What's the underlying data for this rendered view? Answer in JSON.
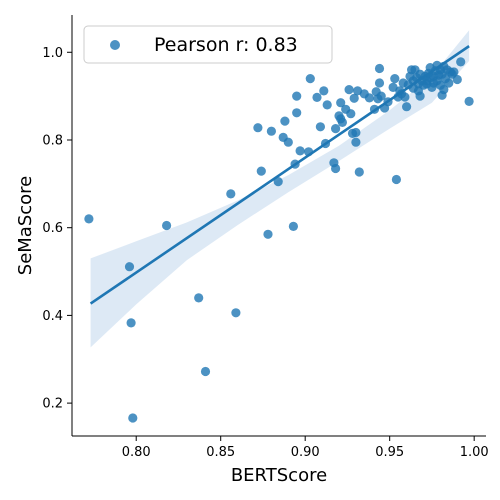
{
  "chart_data": {
    "type": "scatter",
    "xlabel": "BERTScore",
    "ylabel": "SeMaScore",
    "xlim": [
      0.762,
      1.007
    ],
    "ylim": [
      0.125,
      1.085
    ],
    "x_ticks": [
      {
        "value": 0.8,
        "label": "0.80"
      },
      {
        "value": 0.85,
        "label": "0.85"
      },
      {
        "value": 0.9,
        "label": "0.90"
      },
      {
        "value": 0.95,
        "label": "0.95"
      },
      {
        "value": 1.0,
        "label": "1.00"
      }
    ],
    "y_ticks": [
      {
        "value": 0.2,
        "label": "0.2"
      },
      {
        "value": 0.4,
        "label": "0.4"
      },
      {
        "value": 0.6,
        "label": "0.6"
      },
      {
        "value": 0.8,
        "label": "0.8"
      },
      {
        "value": 1.0,
        "label": "1.0"
      }
    ],
    "grid": false,
    "legend": {
      "position": "top-left",
      "label": "Pearson r: 0.83"
    },
    "colors": {
      "points": "#1f77b4",
      "line": "#1f77b4",
      "band": "#c6dbef"
    },
    "regression": {
      "x": [
        0.773,
        0.997
      ],
      "y": [
        0.427,
        1.014
      ]
    },
    "band_upper": [
      [
        0.773,
        0.53
      ],
      [
        0.8,
        0.569
      ],
      [
        0.83,
        0.612
      ],
      [
        0.86,
        0.662
      ],
      [
        0.89,
        0.72
      ],
      [
        0.92,
        0.787
      ],
      [
        0.95,
        0.868
      ],
      [
        0.975,
        0.946
      ],
      [
        0.997,
        1.05
      ]
    ],
    "band_lower": [
      [
        0.773,
        0.327
      ],
      [
        0.8,
        0.425
      ],
      [
        0.83,
        0.526
      ],
      [
        0.86,
        0.606
      ],
      [
        0.89,
        0.681
      ],
      [
        0.92,
        0.752
      ],
      [
        0.95,
        0.826
      ],
      [
        0.975,
        0.885
      ],
      [
        0.997,
        0.98
      ]
    ],
    "points": [
      [
        0.772,
        0.62
      ],
      [
        0.796,
        0.511
      ],
      [
        0.797,
        0.383
      ],
      [
        0.798,
        0.166
      ],
      [
        0.818,
        0.605
      ],
      [
        0.837,
        0.44
      ],
      [
        0.841,
        0.272
      ],
      [
        0.856,
        0.677
      ],
      [
        0.859,
        0.406
      ],
      [
        0.872,
        0.828
      ],
      [
        0.874,
        0.729
      ],
      [
        0.878,
        0.585
      ],
      [
        0.88,
        0.82
      ],
      [
        0.884,
        0.705
      ],
      [
        0.887,
        0.806
      ],
      [
        0.888,
        0.843
      ],
      [
        0.89,
        0.795
      ],
      [
        0.893,
        0.603
      ],
      [
        0.894,
        0.745
      ],
      [
        0.895,
        0.862
      ],
      [
        0.895,
        0.9
      ],
      [
        0.897,
        0.775
      ],
      [
        0.902,
        0.773
      ],
      [
        0.903,
        0.94
      ],
      [
        0.907,
        0.897
      ],
      [
        0.909,
        0.83
      ],
      [
        0.911,
        0.912
      ],
      [
        0.912,
        0.792
      ],
      [
        0.913,
        0.88
      ],
      [
        0.917,
        0.748
      ],
      [
        0.918,
        0.826
      ],
      [
        0.918,
        0.735
      ],
      [
        0.92,
        0.855
      ],
      [
        0.921,
        0.885
      ],
      [
        0.921,
        0.848
      ],
      [
        0.922,
        0.84
      ],
      [
        0.924,
        0.87
      ],
      [
        0.926,
        0.915
      ],
      [
        0.927,
        0.86
      ],
      [
        0.928,
        0.815
      ],
      [
        0.929,
        0.895
      ],
      [
        0.93,
        0.795
      ],
      [
        0.93,
        0.817
      ],
      [
        0.931,
        0.912
      ],
      [
        0.932,
        0.727
      ],
      [
        0.935,
        0.905
      ],
      [
        0.938,
        0.896
      ],
      [
        0.941,
        0.87
      ],
      [
        0.942,
        0.91
      ],
      [
        0.943,
        0.894
      ],
      [
        0.944,
        0.963
      ],
      [
        0.944,
        0.93
      ],
      [
        0.945,
        0.9
      ],
      [
        0.947,
        0.873
      ],
      [
        0.949,
        0.887
      ],
      [
        0.952,
        0.92
      ],
      [
        0.953,
        0.94
      ],
      [
        0.954,
        0.71
      ],
      [
        0.955,
        0.898
      ],
      [
        0.956,
        0.912
      ],
      [
        0.957,
        0.905
      ],
      [
        0.958,
        0.93
      ],
      [
        0.959,
        0.898
      ],
      [
        0.96,
        0.876
      ],
      [
        0.961,
        0.926
      ],
      [
        0.962,
        0.945
      ],
      [
        0.963,
        0.96
      ],
      [
        0.964,
        0.918
      ],
      [
        0.964,
        0.935
      ],
      [
        0.965,
        0.96
      ],
      [
        0.966,
        0.942
      ],
      [
        0.967,
        0.928
      ],
      [
        0.967,
        0.912
      ],
      [
        0.968,
        0.95
      ],
      [
        0.968,
        0.9
      ],
      [
        0.969,
        0.935
      ],
      [
        0.97,
        0.925
      ],
      [
        0.971,
        0.945
      ],
      [
        0.972,
        0.935
      ],
      [
        0.972,
        0.928
      ],
      [
        0.973,
        0.952
      ],
      [
        0.974,
        0.942
      ],
      [
        0.974,
        0.965
      ],
      [
        0.975,
        0.92
      ],
      [
        0.976,
        0.945
      ],
      [
        0.976,
        0.93
      ],
      [
        0.977,
        0.958
      ],
      [
        0.978,
        0.935
      ],
      [
        0.978,
        0.97
      ],
      [
        0.979,
        0.948
      ],
      [
        0.98,
        0.925
      ],
      [
        0.98,
        0.96
      ],
      [
        0.981,
        0.95
      ],
      [
        0.982,
        0.915
      ],
      [
        0.982,
        0.968
      ],
      [
        0.983,
        0.94
      ],
      [
        0.984,
        0.96
      ],
      [
        0.985,
        0.93
      ],
      [
        0.986,
        0.955
      ],
      [
        0.987,
        0.95
      ],
      [
        0.988,
        0.955
      ],
      [
        0.99,
        0.938
      ],
      [
        0.992,
        0.978
      ],
      [
        0.981,
        0.902
      ],
      [
        0.997,
        0.888
      ]
    ]
  }
}
